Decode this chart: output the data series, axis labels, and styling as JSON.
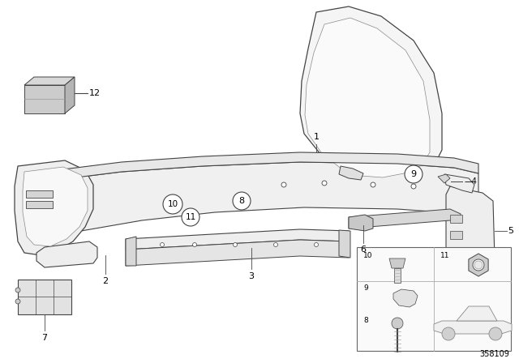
{
  "background_color": "#ffffff",
  "diagram_number": "358109",
  "line_color": "#444444",
  "fill_light": "#f2f2f2",
  "fill_mid": "#e0e0e0",
  "fill_dark": "#c8c8c8"
}
